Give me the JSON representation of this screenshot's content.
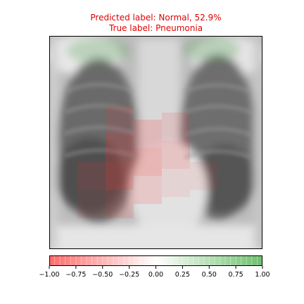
{
  "chart_data": {
    "type": "heatmap",
    "title_lines": [
      "Predicted label: Normal, 52.9%",
      "True label: Pneumonia"
    ],
    "title_color": "#e00000",
    "image": "chest-xray",
    "overlay_cmap": {
      "negative_color": "#ff0000",
      "neutral_color": "#ffffff",
      "positive_color": "#008000"
    },
    "colorbar": {
      "vmin": -1.0,
      "vmax": 1.0,
      "ticks": [
        -1.0,
        -0.75,
        -0.5,
        -0.25,
        0.0,
        0.25,
        0.5,
        0.75,
        1.0
      ],
      "tick_labels": [
        "−1.00",
        "−0.75",
        "−0.50",
        "−0.25",
        "0.00",
        "0.25",
        "0.50",
        "0.75",
        "1.00"
      ]
    },
    "grid": false,
    "axes_ticks": false
  }
}
